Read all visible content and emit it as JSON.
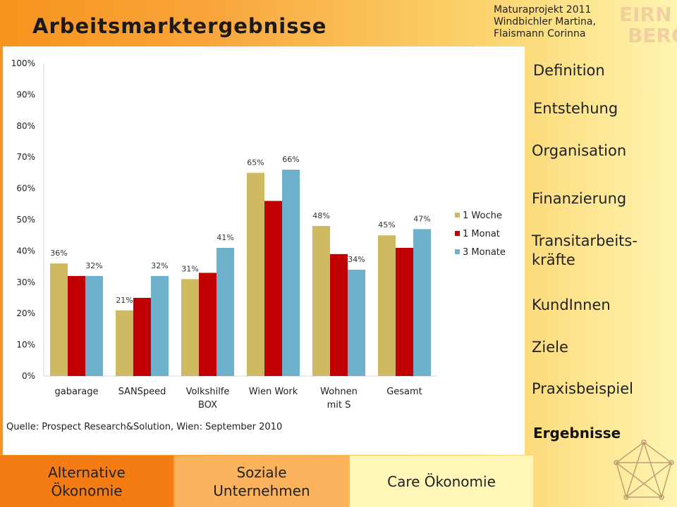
{
  "header": {
    "title": "Arbeitsmarktergebnisse",
    "authors": [
      "Maturaprojekt 2011",
      "Windbichler Martina,",
      "Flaismann Corinna"
    ],
    "logo_text": [
      "EIRN",
      "BERG"
    ]
  },
  "nav": {
    "items": [
      "Definition",
      "Entstehung",
      "Organisation",
      "Finanzierung",
      "Transitarbeits-",
      "kräfte",
      "KundInnen",
      "Ziele",
      "Praxisbeispiel",
      "Ergebnisse"
    ]
  },
  "tabs": {
    "alternative": [
      "Alternative",
      "Ökonomie"
    ],
    "soziale": [
      "Soziale",
      "Unternehmen"
    ],
    "care": "Care Ökonomie"
  },
  "source": "Quelle: Prospect Research&Solution, Wien: September 2010",
  "colors": {
    "series1": "#cfb961",
    "series2": "#c00000",
    "series3": "#6fb0cc",
    "header_orange": "#f7941d"
  },
  "chart_data": {
    "type": "bar",
    "categories": [
      [
        "gabarage"
      ],
      [
        "SANSpeed"
      ],
      [
        "Volkshilfe",
        "BOX"
      ],
      [
        "Wien Work"
      ],
      [
        "Wohnen",
        "mit S"
      ],
      [
        "Gesamt"
      ]
    ],
    "series": [
      {
        "name": "1 Woche",
        "values": [
          36,
          21,
          31,
          65,
          48,
          45
        ],
        "labels": [
          "36%",
          "21%",
          "31%",
          "65%",
          "48%",
          "45%"
        ]
      },
      {
        "name": "1 Monat",
        "values": [
          32,
          25,
          33,
          56,
          39,
          41
        ],
        "labels": [
          "",
          "",
          "",
          "",
          "",
          ""
        ]
      },
      {
        "name": "3 Monate",
        "values": [
          32,
          32,
          41,
          66,
          34,
          47
        ],
        "labels": [
          "32%",
          "32%",
          "41%",
          "66%",
          "34%",
          "47%"
        ]
      }
    ],
    "yticks": [
      "0%",
      "10%",
      "20%",
      "30%",
      "40%",
      "50%",
      "60%",
      "70%",
      "80%",
      "90%",
      "100%"
    ],
    "ylim": [
      0,
      100
    ],
    "legend": "right",
    "grid": false
  }
}
